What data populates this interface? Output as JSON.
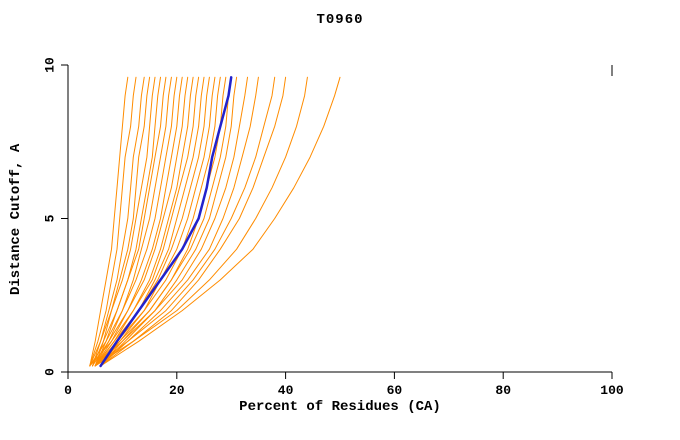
{
  "title": "T0960",
  "colors": {
    "model": "#ff8c00",
    "reference": "#2222cc",
    "axis": "#000000",
    "background": "#ffffff"
  },
  "chart_data": {
    "type": "line",
    "title": "T0960",
    "xlabel": "Percent of Residues (CA)",
    "ylabel": "Distance Cutoff, A",
    "xlim": [
      0,
      100
    ],
    "ylim": [
      0,
      10
    ],
    "x_ticks": [
      0,
      20,
      40,
      60,
      80,
      100
    ],
    "y_ticks": [
      0,
      5,
      10
    ],
    "grid": false,
    "legend": "none",
    "y_levels": [
      0.2,
      1,
      2,
      3,
      4,
      5,
      6,
      7,
      8,
      9,
      9.6
    ],
    "series": [
      {
        "name": "model-curve-01",
        "color": "#ff8c00",
        "width": 1,
        "x": [
          4,
          5,
          6,
          7,
          8,
          8.5,
          9,
          9.5,
          10,
          10.5,
          11
        ]
      },
      {
        "name": "model-curve-02",
        "color": "#ff8c00",
        "width": 1,
        "x": [
          4,
          5.5,
          7,
          8,
          9,
          9.5,
          10,
          10.5,
          11.5,
          12,
          12.5
        ]
      },
      {
        "name": "model-curve-03",
        "color": "#ff8c00",
        "width": 1,
        "x": [
          4.5,
          6,
          7.5,
          9,
          10,
          11,
          11.5,
          12,
          13,
          13.5,
          14
        ]
      },
      {
        "name": "model-curve-04",
        "color": "#ff8c00",
        "width": 1,
        "x": [
          5,
          6.5,
          8,
          9.5,
          11,
          12,
          12.5,
          13,
          14,
          14.5,
          15
        ]
      },
      {
        "name": "model-curve-05",
        "color": "#ff8c00",
        "width": 1,
        "x": [
          4,
          6,
          8,
          10,
          11.5,
          12.5,
          13.5,
          14.5,
          15,
          15.5,
          16
        ]
      },
      {
        "name": "model-curve-06",
        "color": "#ff8c00",
        "width": 1,
        "x": [
          5,
          7,
          9,
          11,
          12.5,
          13.5,
          14.5,
          15.5,
          16,
          16.5,
          17
        ]
      },
      {
        "name": "model-curve-07",
        "color": "#ff8c00",
        "width": 1,
        "x": [
          4.5,
          6.5,
          9,
          11,
          13,
          14,
          15,
          16,
          17,
          17.5,
          18
        ]
      },
      {
        "name": "model-curve-08",
        "color": "#ff8c00",
        "width": 1,
        "x": [
          5,
          7.5,
          10,
          12,
          13.5,
          15,
          16,
          17,
          18,
          18.5,
          19
        ]
      },
      {
        "name": "model-curve-09",
        "color": "#ff8c00",
        "width": 1,
        "x": [
          4,
          7,
          10,
          12.5,
          14.5,
          16,
          17,
          18,
          19,
          19.5,
          20
        ]
      },
      {
        "name": "model-curve-10",
        "color": "#ff8c00",
        "width": 1,
        "x": [
          5,
          8,
          11,
          13.5,
          15.5,
          17,
          18,
          19,
          20,
          20.5,
          21
        ]
      },
      {
        "name": "model-curve-11",
        "color": "#ff8c00",
        "width": 1,
        "x": [
          4.5,
          7.5,
          11,
          14,
          16,
          17.5,
          19,
          20,
          21,
          21.5,
          22
        ]
      },
      {
        "name": "model-curve-12",
        "color": "#ff8c00",
        "width": 1,
        "x": [
          5,
          8.5,
          12,
          15,
          17,
          18.5,
          20,
          21,
          22,
          22.5,
          23
        ]
      },
      {
        "name": "model-curve-13",
        "color": "#ff8c00",
        "width": 1,
        "x": [
          4,
          8,
          12,
          15.5,
          17.5,
          19,
          20.5,
          22,
          23,
          23.5,
          24
        ]
      },
      {
        "name": "model-curve-14",
        "color": "#ff8c00",
        "width": 1,
        "x": [
          6,
          9,
          13,
          16,
          18.5,
          20,
          21.5,
          23,
          24,
          24.5,
          25
        ]
      },
      {
        "name": "model-curve-15",
        "color": "#ff8c00",
        "width": 1,
        "x": [
          5,
          8.5,
          13,
          16.5,
          19,
          21,
          22.5,
          24,
          25,
          25.5,
          26
        ]
      },
      {
        "name": "model-curve-16",
        "color": "#ff8c00",
        "width": 1,
        "x": [
          6,
          9.5,
          14,
          17,
          20,
          22,
          23.5,
          25,
          26,
          26.5,
          27
        ]
      },
      {
        "name": "model-curve-17",
        "color": "#ff8c00",
        "width": 1,
        "x": [
          5,
          9,
          14,
          18,
          21,
          23,
          24.5,
          26,
          27,
          27.5,
          28
        ]
      },
      {
        "name": "model-curve-18",
        "color": "#ff8c00",
        "width": 1,
        "x": [
          6,
          10,
          15,
          19,
          22,
          24,
          25.5,
          27,
          28,
          28.5,
          29
        ]
      },
      {
        "name": "model-curve-19",
        "color": "#ff8c00",
        "width": 1,
        "x": [
          5,
          9.5,
          15,
          19,
          22.5,
          25,
          26.5,
          28,
          29,
          29.5,
          30
        ]
      },
      {
        "name": "model-curve-20",
        "color": "#ff8c00",
        "width": 1,
        "x": [
          6,
          10.5,
          16,
          20,
          23.5,
          26,
          27.5,
          29,
          30,
          30.5,
          31
        ]
      },
      {
        "name": "model-curve-21",
        "color": "#ff8c00",
        "width": 1,
        "x": [
          5,
          10,
          16,
          21,
          24.5,
          27,
          29,
          30.5,
          31.5,
          32.5,
          33
        ]
      },
      {
        "name": "model-curve-22",
        "color": "#ff8c00",
        "width": 1,
        "x": [
          6,
          11,
          17,
          22,
          26,
          28.5,
          30.5,
          32,
          33.5,
          34.5,
          35
        ]
      },
      {
        "name": "model-curve-23",
        "color": "#ff8c00",
        "width": 1,
        "x": [
          5,
          11,
          18,
          23,
          27,
          30,
          32.5,
          34.5,
          36,
          37.5,
          38
        ]
      },
      {
        "name": "model-curve-24",
        "color": "#ff8c00",
        "width": 1,
        "x": [
          6,
          12,
          19,
          24,
          28,
          31.5,
          34,
          36,
          38,
          39.5,
          40
        ]
      },
      {
        "name": "model-curve-25",
        "color": "#ff8c00",
        "width": 1,
        "x": [
          5,
          12,
          20,
          26,
          31,
          34.5,
          37.5,
          40,
          42,
          43.5,
          44
        ]
      },
      {
        "name": "model-curve-26",
        "color": "#ff8c00",
        "width": 1,
        "x": [
          6,
          13,
          21,
          28,
          34,
          38,
          41.5,
          44.5,
          47,
          49,
          50
        ]
      },
      {
        "name": "consensus-curve",
        "color": "#2222cc",
        "width": 2.5,
        "x": [
          6,
          9,
          13,
          17,
          21,
          24,
          25.5,
          26.5,
          28,
          29.5,
          30
        ]
      }
    ]
  }
}
